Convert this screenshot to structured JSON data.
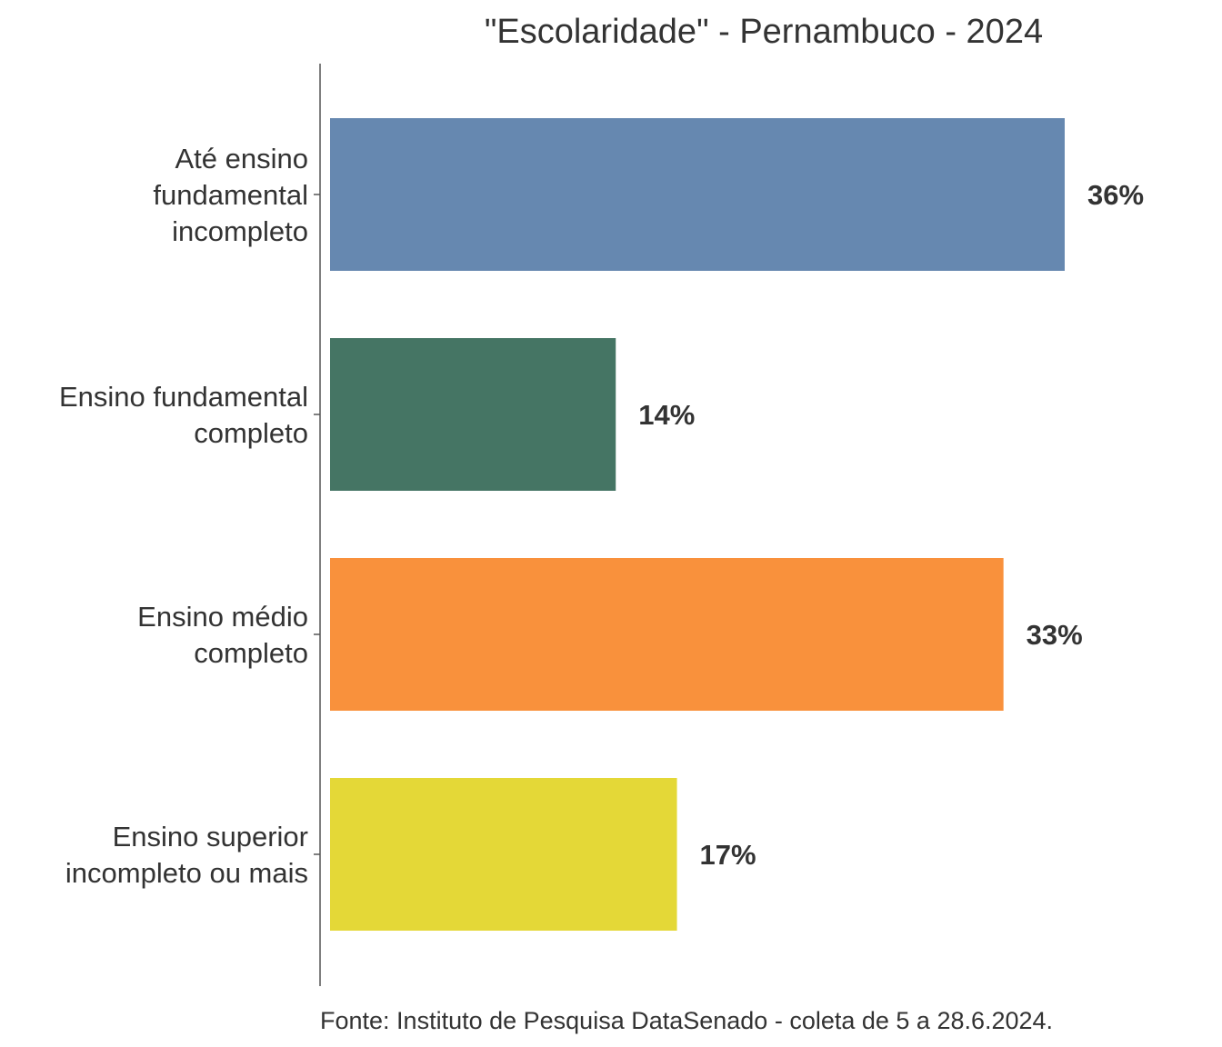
{
  "chart_data": {
    "type": "bar",
    "orientation": "horizontal",
    "title": "\"Escolaridade\" - Pernambuco - 2024",
    "categories": [
      "Até ensino fundamental incompleto",
      "Ensino fundamental completo",
      "Ensino médio completo",
      "Ensino superior incompleto ou mais"
    ],
    "category_label_lines": [
      [
        "Até ensino",
        "fundamental",
        "incompleto"
      ],
      [
        "Ensino fundamental",
        "completo"
      ],
      [
        "Ensino médio",
        "completo"
      ],
      [
        "Ensino superior",
        "incompleto ou mais"
      ]
    ],
    "values": [
      36,
      14,
      33,
      17
    ],
    "value_labels": [
      "36%",
      "14%",
      "33%",
      "17%"
    ],
    "colors": [
      "#6688b0",
      "#457564",
      "#f9913c",
      "#e4d837"
    ],
    "xlim": [
      0,
      45
    ],
    "grid": false,
    "legend": "none",
    "source": "Fonte: Instituto de Pesquisa DataSenado - coleta de 5 a 28.6.2024."
  }
}
